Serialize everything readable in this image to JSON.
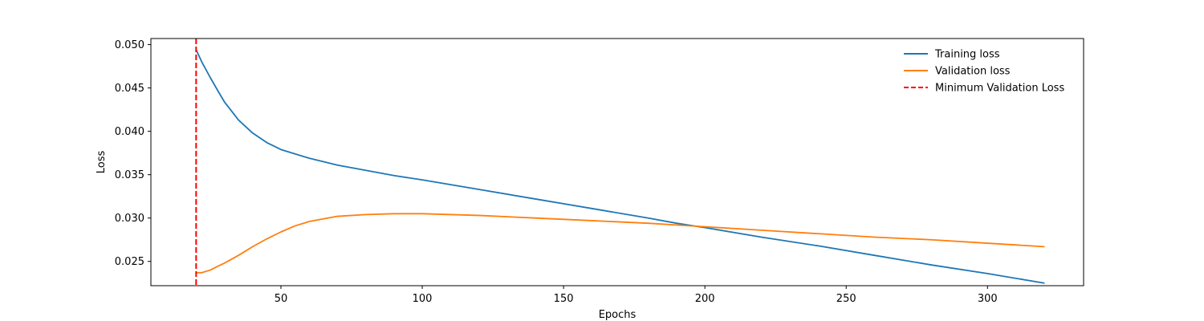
{
  "chart_data": {
    "type": "line",
    "title": "",
    "xlabel": "Epochs",
    "ylabel": "Loss",
    "xlim": [
      4,
      334
    ],
    "ylim": [
      0.0222,
      0.0507
    ],
    "x_ticks": [
      50,
      100,
      150,
      200,
      250,
      300
    ],
    "y_ticks": [
      0.025,
      0.03,
      0.035,
      0.04,
      0.045,
      0.05
    ],
    "x_tick_labels": [
      "50",
      "100",
      "150",
      "200",
      "250",
      "300"
    ],
    "y_tick_labels": [
      "0.025",
      "0.030",
      "0.035",
      "0.040",
      "0.045",
      "0.050"
    ],
    "grid": false,
    "legend_position": "top-right",
    "series": [
      {
        "name": "Training loss",
        "color": "#1f77b4",
        "style": "solid",
        "x": [
          20,
          22,
          25,
          28,
          30,
          35,
          40,
          45,
          50,
          60,
          70,
          80,
          90,
          100,
          120,
          140,
          160,
          180,
          190,
          200,
          220,
          240,
          260,
          280,
          300,
          320
        ],
        "y": [
          0.0494,
          0.048,
          0.0462,
          0.0445,
          0.0434,
          0.0413,
          0.0398,
          0.0387,
          0.0379,
          0.0369,
          0.0361,
          0.0355,
          0.0349,
          0.0344,
          0.0333,
          0.0322,
          0.0311,
          0.03,
          0.0294,
          0.0289,
          0.0278,
          0.0268,
          0.0257,
          0.0246,
          0.0236,
          0.0225
        ]
      },
      {
        "name": "Validation loss",
        "color": "#ff7f0e",
        "style": "solid",
        "x": [
          20,
          22,
          25,
          28,
          30,
          35,
          40,
          45,
          50,
          55,
          60,
          70,
          80,
          90,
          100,
          120,
          140,
          160,
          180,
          190,
          200,
          220,
          240,
          260,
          280,
          300,
          320
        ],
        "y": [
          0.0237,
          0.0237,
          0.024,
          0.0245,
          0.0248,
          0.0257,
          0.0267,
          0.0276,
          0.0284,
          0.0291,
          0.0296,
          0.0302,
          0.0304,
          0.0305,
          0.0305,
          0.0303,
          0.03,
          0.0297,
          0.0294,
          0.0292,
          0.029,
          0.0286,
          0.0282,
          0.0278,
          0.0275,
          0.0271,
          0.0267
        ]
      }
    ],
    "vlines": [
      {
        "name": "Minimum Validation Loss",
        "x": 20,
        "color": "#ff0000",
        "style": "dashed"
      }
    ]
  }
}
